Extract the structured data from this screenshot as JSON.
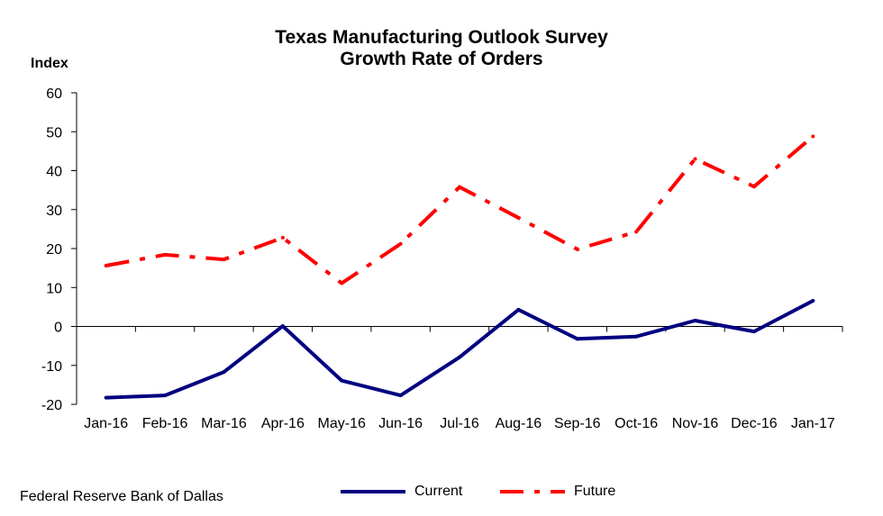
{
  "chart_data": {
    "type": "line",
    "title": "Texas Manufacturing Outlook Survey",
    "subtitle": "Growth Rate of Orders",
    "ylabel": "Index",
    "xlabel": "",
    "ylim": [
      -20,
      60
    ],
    "yticks": [
      "60",
      "50",
      "40",
      "30",
      "20",
      "10",
      "0",
      "-10",
      "-20"
    ],
    "categories": [
      "Jan-16",
      "Feb-16",
      "Mar-16",
      "Apr-16",
      "May-16",
      "Jun-16",
      "Jul-16",
      "Aug-16",
      "Sep-16",
      "Oct-16",
      "Nov-16",
      "Dec-16",
      "Jan-17"
    ],
    "series": [
      {
        "name": "Current",
        "color": "#000080",
        "style": "solid",
        "values": [
          -18.3,
          -17.7,
          -11.7,
          0.1,
          -13.9,
          -17.7,
          -7.9,
          4.3,
          -3.2,
          -2.6,
          1.5,
          -1.3,
          6.6
        ]
      },
      {
        "name": "Future",
        "color": "#ff0000",
        "style": "dash-dot",
        "values": [
          15.6,
          18.4,
          17.2,
          22.8,
          11.1,
          21.2,
          35.8,
          27.9,
          19.8,
          24.3,
          43.0,
          35.9,
          48.8
        ]
      }
    ],
    "legend_position": "bottom-center",
    "grid": false
  },
  "source": "Federal Reserve Bank of Dallas"
}
